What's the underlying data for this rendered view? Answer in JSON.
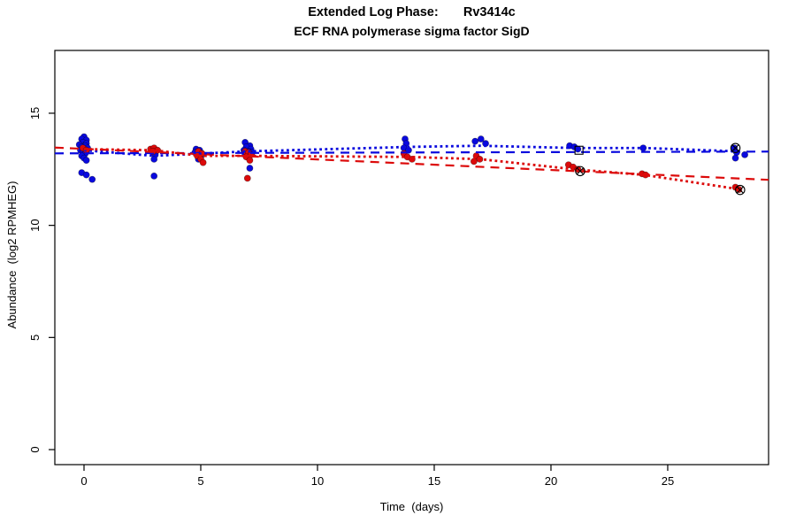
{
  "figure_background": "#ffffff",
  "chart_data": {
    "type": "scatter",
    "title": "Extended Log Phase:       Rv3414c",
    "subtitle": "ECF RNA polymerase sigma factor SigD",
    "xlabel": "Time  (days)",
    "ylabel": "Abundance  (log2 RPMHEG)",
    "xlim": [
      -1.25,
      29.32
    ],
    "ylim": [
      -0.67,
      17.8
    ],
    "xticks": [
      0,
      5,
      10,
      15,
      20,
      25
    ],
    "yticks": [
      0,
      5,
      10,
      15
    ],
    "grid": false,
    "legend": "none",
    "axis_color": "#000000",
    "series": [
      {
        "name": "condition-blue",
        "color": "#0909DE",
        "marker": "filled-circle",
        "points": [
          [
            0.0,
            13.95
          ],
          [
            -0.1,
            13.85
          ],
          [
            0.1,
            13.8
          ],
          [
            -0.05,
            13.7
          ],
          [
            0.1,
            13.65
          ],
          [
            -0.2,
            13.6
          ],
          [
            0.05,
            13.55
          ],
          [
            -0.1,
            13.5
          ],
          [
            0.15,
            13.45
          ],
          [
            0.0,
            13.4
          ],
          [
            -0.15,
            13.35
          ],
          [
            0.1,
            13.3
          ],
          [
            -0.05,
            13.25
          ],
          [
            0.05,
            13.2
          ],
          [
            -0.1,
            13.1
          ],
          [
            0.0,
            13.0
          ],
          [
            0.1,
            12.9
          ],
          [
            -0.1,
            12.35
          ],
          [
            0.1,
            12.25
          ],
          [
            0.35,
            12.05
          ],
          [
            2.95,
            13.25
          ],
          [
            3.05,
            13.15
          ],
          [
            3.0,
            12.95
          ],
          [
            3.0,
            12.2
          ],
          [
            4.8,
            13.4
          ],
          [
            4.95,
            13.35
          ],
          [
            4.75,
            13.25
          ],
          [
            5.05,
            13.2
          ],
          [
            4.85,
            13.15
          ],
          [
            5.0,
            13.05
          ],
          [
            4.9,
            12.95
          ],
          [
            6.9,
            13.7
          ],
          [
            7.1,
            13.55
          ],
          [
            6.95,
            13.5
          ],
          [
            7.15,
            13.4
          ],
          [
            6.85,
            13.35
          ],
          [
            7.05,
            13.3
          ],
          [
            7.2,
            13.25
          ],
          [
            6.9,
            13.15
          ],
          [
            7.0,
            13.05
          ],
          [
            7.1,
            12.55
          ],
          [
            13.75,
            13.85
          ],
          [
            13.8,
            13.65
          ],
          [
            13.7,
            13.45
          ],
          [
            13.9,
            13.35
          ],
          [
            16.75,
            13.75
          ],
          [
            17.0,
            13.85
          ],
          [
            17.2,
            13.65
          ],
          [
            20.8,
            13.55
          ],
          [
            21.0,
            13.5
          ],
          [
            21.15,
            13.4
          ],
          [
            23.95,
            13.45
          ],
          [
            27.85,
            13.45
          ],
          [
            27.95,
            13.25
          ],
          [
            28.3,
            13.15
          ],
          [
            27.9,
            13.0
          ]
        ]
      },
      {
        "name": "condition-red",
        "color": "#DC0A0A",
        "marker": "filled-circle",
        "points": [
          [
            -0.05,
            13.45
          ],
          [
            0.1,
            13.35
          ],
          [
            2.85,
            13.4
          ],
          [
            3.0,
            13.45
          ],
          [
            3.15,
            13.35
          ],
          [
            2.95,
            13.3
          ],
          [
            4.9,
            13.3
          ],
          [
            5.05,
            13.2
          ],
          [
            4.85,
            13.1
          ],
          [
            5.0,
            12.95
          ],
          [
            5.1,
            12.8
          ],
          [
            6.9,
            13.3
          ],
          [
            7.05,
            13.25
          ],
          [
            7.15,
            13.15
          ],
          [
            6.95,
            13.05
          ],
          [
            7.1,
            12.9
          ],
          [
            7.0,
            12.1
          ],
          [
            13.7,
            13.2
          ],
          [
            13.85,
            13.05
          ],
          [
            14.05,
            12.95
          ],
          [
            16.8,
            13.1
          ],
          [
            16.95,
            12.95
          ],
          [
            16.7,
            12.85
          ],
          [
            20.75,
            12.7
          ],
          [
            20.95,
            12.6
          ],
          [
            21.15,
            12.5
          ],
          [
            23.9,
            12.3
          ],
          [
            24.05,
            12.25
          ],
          [
            27.9,
            11.7
          ],
          [
            28.05,
            11.6
          ]
        ]
      }
    ],
    "trend_lines": [
      {
        "name": "blue-linear-fit",
        "color": "#0909DE",
        "style": "dashed",
        "points": [
          [
            -1.25,
            13.21
          ],
          [
            29.32,
            13.29
          ]
        ]
      },
      {
        "name": "red-linear-fit",
        "color": "#DC0A0A",
        "style": "dashed",
        "points": [
          [
            -1.25,
            13.47
          ],
          [
            29.32,
            12.03
          ]
        ]
      },
      {
        "name": "blue-timepoint-means",
        "color": "#0909DE",
        "style": "dotted",
        "points": [
          [
            0,
            13.35
          ],
          [
            3,
            13.1
          ],
          [
            5,
            13.2
          ],
          [
            7,
            13.3
          ],
          [
            14,
            13.5
          ],
          [
            17,
            13.55
          ],
          [
            21,
            13.45
          ],
          [
            24,
            13.45
          ],
          [
            28,
            13.3
          ]
        ]
      },
      {
        "name": "red-timepoint-means",
        "color": "#DC0A0A",
        "style": "dotted",
        "points": [
          [
            0,
            13.4
          ],
          [
            3,
            13.35
          ],
          [
            5,
            13.1
          ],
          [
            7,
            13.1
          ],
          [
            14,
            13.05
          ],
          [
            17,
            12.95
          ],
          [
            21,
            12.5
          ],
          [
            24,
            12.25
          ],
          [
            28,
            11.62
          ]
        ]
      }
    ],
    "flagged_points": [
      {
        "x": 21.2,
        "y": 13.35,
        "symbol": "square",
        "color": "#000000"
      },
      {
        "x": 21.25,
        "y": 12.42,
        "symbol": "circle-x",
        "color": "#000000"
      },
      {
        "x": 27.9,
        "y": 13.45,
        "symbol": "circle-x",
        "color": "#000000"
      },
      {
        "x": 28.1,
        "y": 11.58,
        "symbol": "circle-x",
        "color": "#000000"
      }
    ]
  }
}
